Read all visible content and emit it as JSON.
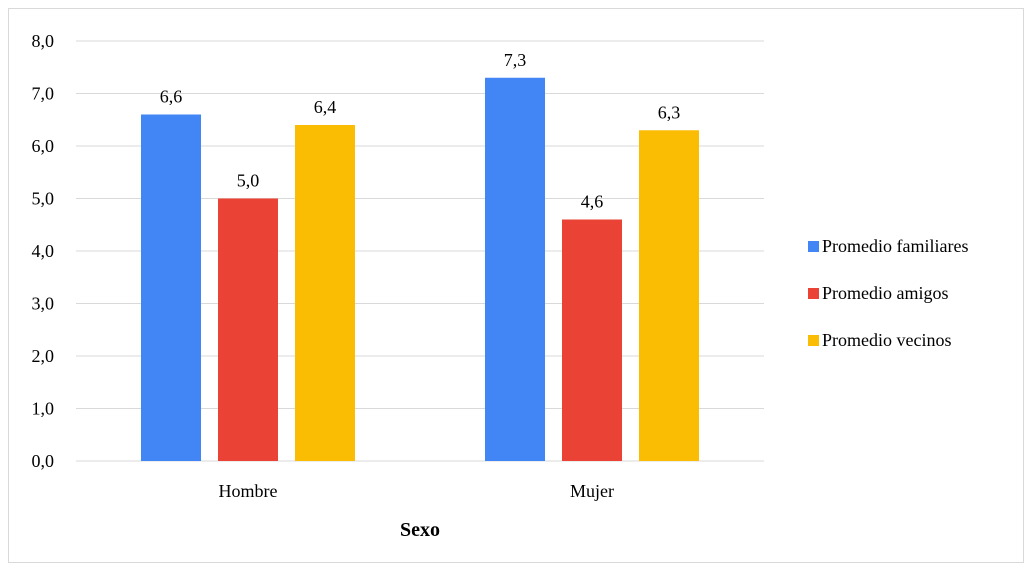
{
  "chart_data": {
    "type": "bar",
    "categories": [
      "Hombre",
      "Mujer"
    ],
    "series": [
      {
        "name": "Promedio familiares",
        "values": [
          6.6,
          7.3
        ],
        "labels": [
          "6,6",
          "7,3"
        ],
        "color": "#4285f4"
      },
      {
        "name": "Promedio amigos",
        "values": [
          5.0,
          4.6
        ],
        "labels": [
          "5,0",
          "4,6"
        ],
        "color": "#ea4335"
      },
      {
        "name": "Promedio vecinos",
        "values": [
          6.4,
          6.3
        ],
        "labels": [
          "6,4",
          "6,3"
        ],
        "color": "#fbbc04"
      }
    ],
    "yticks": [
      "0,0",
      "1,0",
      "2,0",
      "3,0",
      "4,0",
      "5,0",
      "6,0",
      "7,0",
      "8,0"
    ],
    "ylim": [
      0,
      8
    ],
    "xlabel": "Sexo",
    "ylabel": "",
    "title": "",
    "grid": true,
    "legend_position": "right",
    "gridline_color": "#d9d9d9"
  }
}
